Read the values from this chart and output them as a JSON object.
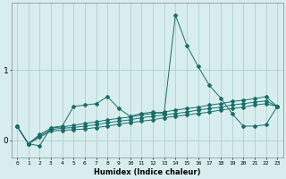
{
  "xlabel": "Humidex (Indice chaleur)",
  "bg_color": "#d8eeee",
  "grid_color": "#b0d0d0",
  "line_color": "#1a6e6a",
  "x_values": [
    0,
    1,
    2,
    3,
    4,
    5,
    6,
    7,
    8,
    9,
    10,
    11,
    12,
    13,
    14,
    15,
    16,
    17,
    18,
    19,
    20,
    21,
    22,
    23
  ],
  "series1": [
    0.2,
    -0.05,
    -0.08,
    0.18,
    0.2,
    0.48,
    0.5,
    0.52,
    0.62,
    0.45,
    0.34,
    0.38,
    0.4,
    0.38,
    1.78,
    1.35,
    1.05,
    0.78,
    0.6,
    0.38,
    0.2,
    0.2,
    0.22,
    0.48
  ],
  "series2": [
    0.2,
    -0.05,
    0.08,
    0.17,
    0.19,
    0.21,
    0.24,
    0.26,
    0.29,
    0.31,
    0.33,
    0.36,
    0.38,
    0.4,
    0.43,
    0.45,
    0.47,
    0.5,
    0.52,
    0.55,
    0.57,
    0.59,
    0.62,
    0.48
  ],
  "series3": [
    0.2,
    -0.05,
    0.06,
    0.15,
    0.17,
    0.18,
    0.2,
    0.22,
    0.25,
    0.27,
    0.29,
    0.32,
    0.34,
    0.36,
    0.38,
    0.4,
    0.43,
    0.45,
    0.47,
    0.5,
    0.52,
    0.54,
    0.56,
    0.48
  ],
  "series4": [
    0.2,
    -0.05,
    0.04,
    0.13,
    0.14,
    0.15,
    0.16,
    0.18,
    0.2,
    0.23,
    0.25,
    0.27,
    0.29,
    0.32,
    0.34,
    0.36,
    0.38,
    0.4,
    0.43,
    0.45,
    0.47,
    0.5,
    0.52,
    0.48
  ],
  "yticks": [
    0,
    1
  ],
  "ylim": [
    -0.25,
    1.95
  ],
  "xlim": [
    -0.5,
    23.5
  ]
}
